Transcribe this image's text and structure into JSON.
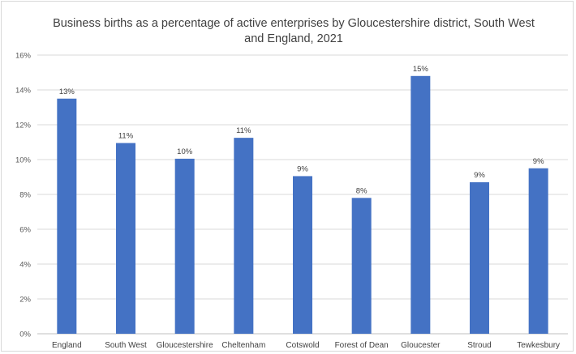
{
  "chart_data": {
    "type": "bar",
    "title": "Business births as a percentage of active enterprises by Gloucestershire district, South West and England, 2021",
    "xlabel": "",
    "ylabel": "",
    "ylim": [
      0,
      16
    ],
    "y_ticks": [
      "0%",
      "2%",
      "4%",
      "6%",
      "8%",
      "10%",
      "12%",
      "14%",
      "16%"
    ],
    "grid": true,
    "legend": "none",
    "categories": [
      "England",
      "South West",
      "Gloucestershire",
      "Cheltenham",
      "Cotswold",
      "Forest of Dean",
      "Gloucester",
      "Stroud",
      "Tewkesbury"
    ],
    "values": [
      13.5,
      10.95,
      10.05,
      11.25,
      9.05,
      7.8,
      14.8,
      8.7,
      9.5
    ],
    "data_labels": [
      "13%",
      "11%",
      "10%",
      "11%",
      "9%",
      "8%",
      "15%",
      "9%",
      "9%"
    ],
    "colors": {
      "bar": "#4472C4",
      "grid": "#d9d9d9",
      "axis": "#bfbfbf"
    }
  }
}
